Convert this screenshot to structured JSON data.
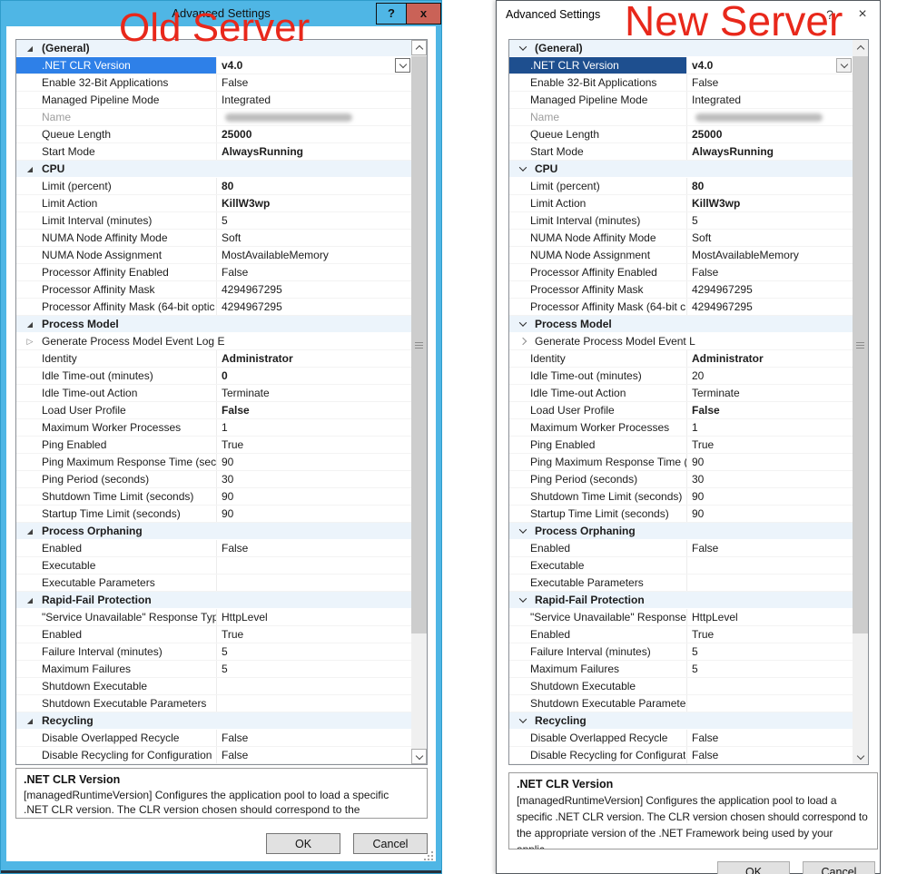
{
  "annotations": {
    "left": "Old Server",
    "right": "New Server"
  },
  "colors": {
    "titlebar_blue": "#4fb6e5",
    "close_red": "#ca6257",
    "selection_win8": "#2e80e8",
    "selection_win10": "#1e4f8f",
    "group_row_bg": "#ecf4fb",
    "annotation_red": "#e8281b"
  },
  "icons": {
    "group_expanded": "triangle-down-right",
    "subgroup_collapsed": "triangle-right",
    "win10_group_expanded": "chevron-down",
    "win10_subgroup_collapsed": "chevron-right",
    "dropdown": "chevron-down",
    "scroll_up": "chevron-up",
    "scroll_down": "chevron-down"
  },
  "left_dialog": {
    "title": "Advanced Settings",
    "help_label": "?",
    "close_label": "x",
    "ok_label": "OK",
    "cancel_label": "Cancel",
    "description": {
      "title": ".NET CLR Version",
      "body": " [managedRuntimeVersion] Configures the application pool to load a specific .NET CLR version.  The CLR version chosen should correspond to the appropriate versio..."
    },
    "rows": [
      {
        "type": "group",
        "label": "(General)"
      },
      {
        "type": "item",
        "label": ".NET CLR Version",
        "value": "v4.0",
        "bold": true,
        "selected": true,
        "combo": true
      },
      {
        "type": "item",
        "label": "Enable 32-Bit Applications",
        "value": "False"
      },
      {
        "type": "item",
        "label": "Managed Pipeline Mode",
        "value": "Integrated"
      },
      {
        "type": "item",
        "label": "Name",
        "value": "",
        "dim": true,
        "redacted": true
      },
      {
        "type": "item",
        "label": "Queue Length",
        "value": "25000",
        "bold": true
      },
      {
        "type": "item",
        "label": "Start Mode",
        "value": "AlwaysRunning",
        "bold": true
      },
      {
        "type": "group",
        "label": "CPU"
      },
      {
        "type": "item",
        "label": "Limit (percent)",
        "value": "80",
        "bold": true
      },
      {
        "type": "item",
        "label": "Limit Action",
        "value": "KillW3wp",
        "bold": true
      },
      {
        "type": "item",
        "label": "Limit Interval (minutes)",
        "value": "5"
      },
      {
        "type": "item",
        "label": "NUMA Node Affinity Mode",
        "value": "Soft"
      },
      {
        "type": "item",
        "label": "NUMA Node Assignment",
        "value": "MostAvailableMemory"
      },
      {
        "type": "item",
        "label": "Processor Affinity Enabled",
        "value": "False"
      },
      {
        "type": "item",
        "label": "Processor Affinity Mask",
        "value": "4294967295"
      },
      {
        "type": "item",
        "label": "Processor Affinity Mask (64-bit optic",
        "value": "4294967295"
      },
      {
        "type": "group",
        "label": "Process Model"
      },
      {
        "type": "subgroup",
        "label": "Generate Process Model Event Log E"
      },
      {
        "type": "item",
        "label": "Identity",
        "value": "Administrator",
        "bold": true
      },
      {
        "type": "item",
        "label": "Idle Time-out (minutes)",
        "value": "0",
        "bold": true
      },
      {
        "type": "item",
        "label": "Idle Time-out Action",
        "value": "Terminate"
      },
      {
        "type": "item",
        "label": "Load User Profile",
        "value": "False",
        "bold": true
      },
      {
        "type": "item",
        "label": "Maximum Worker Processes",
        "value": "1"
      },
      {
        "type": "item",
        "label": "Ping Enabled",
        "value": "True"
      },
      {
        "type": "item",
        "label": "Ping Maximum Response Time (seco",
        "value": "90"
      },
      {
        "type": "item",
        "label": "Ping Period (seconds)",
        "value": "30"
      },
      {
        "type": "item",
        "label": "Shutdown Time Limit (seconds)",
        "value": "90"
      },
      {
        "type": "item",
        "label": "Startup Time Limit (seconds)",
        "value": "90"
      },
      {
        "type": "group",
        "label": "Process Orphaning"
      },
      {
        "type": "item",
        "label": "Enabled",
        "value": "False"
      },
      {
        "type": "item",
        "label": "Executable",
        "value": ""
      },
      {
        "type": "item",
        "label": "Executable Parameters",
        "value": ""
      },
      {
        "type": "group",
        "label": "Rapid-Fail Protection"
      },
      {
        "type": "item",
        "label": "\"Service Unavailable\" Response Type",
        "value": "HttpLevel"
      },
      {
        "type": "item",
        "label": "Enabled",
        "value": "True"
      },
      {
        "type": "item",
        "label": "Failure Interval (minutes)",
        "value": "5"
      },
      {
        "type": "item",
        "label": "Maximum Failures",
        "value": "5"
      },
      {
        "type": "item",
        "label": "Shutdown Executable",
        "value": ""
      },
      {
        "type": "item",
        "label": "Shutdown Executable Parameters",
        "value": ""
      },
      {
        "type": "group",
        "label": "Recycling"
      },
      {
        "type": "item",
        "label": "Disable Overlapped Recycle",
        "value": "False"
      },
      {
        "type": "item",
        "label": "Disable Recycling for Configuration",
        "value": "False"
      }
    ]
  },
  "right_dialog": {
    "title": "Advanced Settings",
    "help_label": "?",
    "close_label": "×",
    "ok_label": "OK",
    "cancel_label": "Cancel",
    "description": {
      "title": ".NET CLR Version",
      "body": " [managedRuntimeVersion] Configures the application pool to load a specific .NET CLR version.  The CLR version chosen should correspond to the appropriate version of the .NET Framework being used by your applic..."
    },
    "rows": [
      {
        "type": "group",
        "label": "(General)"
      },
      {
        "type": "item",
        "label": ".NET CLR Version",
        "value": "v4.0",
        "bold": true,
        "selected": true,
        "combo": true
      },
      {
        "type": "item",
        "label": "Enable 32-Bit Applications",
        "value": "False"
      },
      {
        "type": "item",
        "label": "Managed Pipeline Mode",
        "value": "Integrated"
      },
      {
        "type": "item",
        "label": "Name",
        "value": "",
        "dim": true,
        "redacted": true
      },
      {
        "type": "item",
        "label": "Queue Length",
        "value": "25000",
        "bold": true
      },
      {
        "type": "item",
        "label": "Start Mode",
        "value": "AlwaysRunning",
        "bold": true
      },
      {
        "type": "group",
        "label": "CPU"
      },
      {
        "type": "item",
        "label": "Limit (percent)",
        "value": "80",
        "bold": true
      },
      {
        "type": "item",
        "label": "Limit Action",
        "value": "KillW3wp",
        "bold": true
      },
      {
        "type": "item",
        "label": "Limit Interval (minutes)",
        "value": "5"
      },
      {
        "type": "item",
        "label": "NUMA Node Affinity Mode",
        "value": "Soft"
      },
      {
        "type": "item",
        "label": "NUMA Node Assignment",
        "value": "MostAvailableMemory"
      },
      {
        "type": "item",
        "label": "Processor Affinity Enabled",
        "value": "False"
      },
      {
        "type": "item",
        "label": "Processor Affinity Mask",
        "value": "4294967295"
      },
      {
        "type": "item",
        "label": "Processor Affinity Mask (64-bit c",
        "value": "4294967295"
      },
      {
        "type": "group",
        "label": "Process Model"
      },
      {
        "type": "subgroup",
        "label": "Generate Process Model Event L"
      },
      {
        "type": "item",
        "label": "Identity",
        "value": "Administrator",
        "bold": true
      },
      {
        "type": "item",
        "label": "Idle Time-out (minutes)",
        "value": "20"
      },
      {
        "type": "item",
        "label": "Idle Time-out Action",
        "value": "Terminate"
      },
      {
        "type": "item",
        "label": "Load User Profile",
        "value": "False",
        "bold": true
      },
      {
        "type": "item",
        "label": "Maximum Worker Processes",
        "value": "1"
      },
      {
        "type": "item",
        "label": "Ping Enabled",
        "value": "True"
      },
      {
        "type": "item",
        "label": "Ping Maximum Response Time (",
        "value": "90"
      },
      {
        "type": "item",
        "label": "Ping Period (seconds)",
        "value": "30"
      },
      {
        "type": "item",
        "label": "Shutdown Time Limit (seconds)",
        "value": "90"
      },
      {
        "type": "item",
        "label": "Startup Time Limit (seconds)",
        "value": "90"
      },
      {
        "type": "group",
        "label": "Process Orphaning"
      },
      {
        "type": "item",
        "label": "Enabled",
        "value": "False"
      },
      {
        "type": "item",
        "label": "Executable",
        "value": ""
      },
      {
        "type": "item",
        "label": "Executable Parameters",
        "value": ""
      },
      {
        "type": "group",
        "label": "Rapid-Fail Protection"
      },
      {
        "type": "item",
        "label": "\"Service Unavailable\" Response T",
        "value": "HttpLevel"
      },
      {
        "type": "item",
        "label": "Enabled",
        "value": "True"
      },
      {
        "type": "item",
        "label": "Failure Interval (minutes)",
        "value": "5"
      },
      {
        "type": "item",
        "label": "Maximum Failures",
        "value": "5"
      },
      {
        "type": "item",
        "label": "Shutdown Executable",
        "value": ""
      },
      {
        "type": "item",
        "label": "Shutdown Executable Parameter",
        "value": ""
      },
      {
        "type": "group",
        "label": "Recycling"
      },
      {
        "type": "item",
        "label": "Disable Overlapped Recycle",
        "value": "False"
      },
      {
        "type": "item",
        "label": "Disable Recycling for Configurat",
        "value": "False"
      }
    ]
  }
}
